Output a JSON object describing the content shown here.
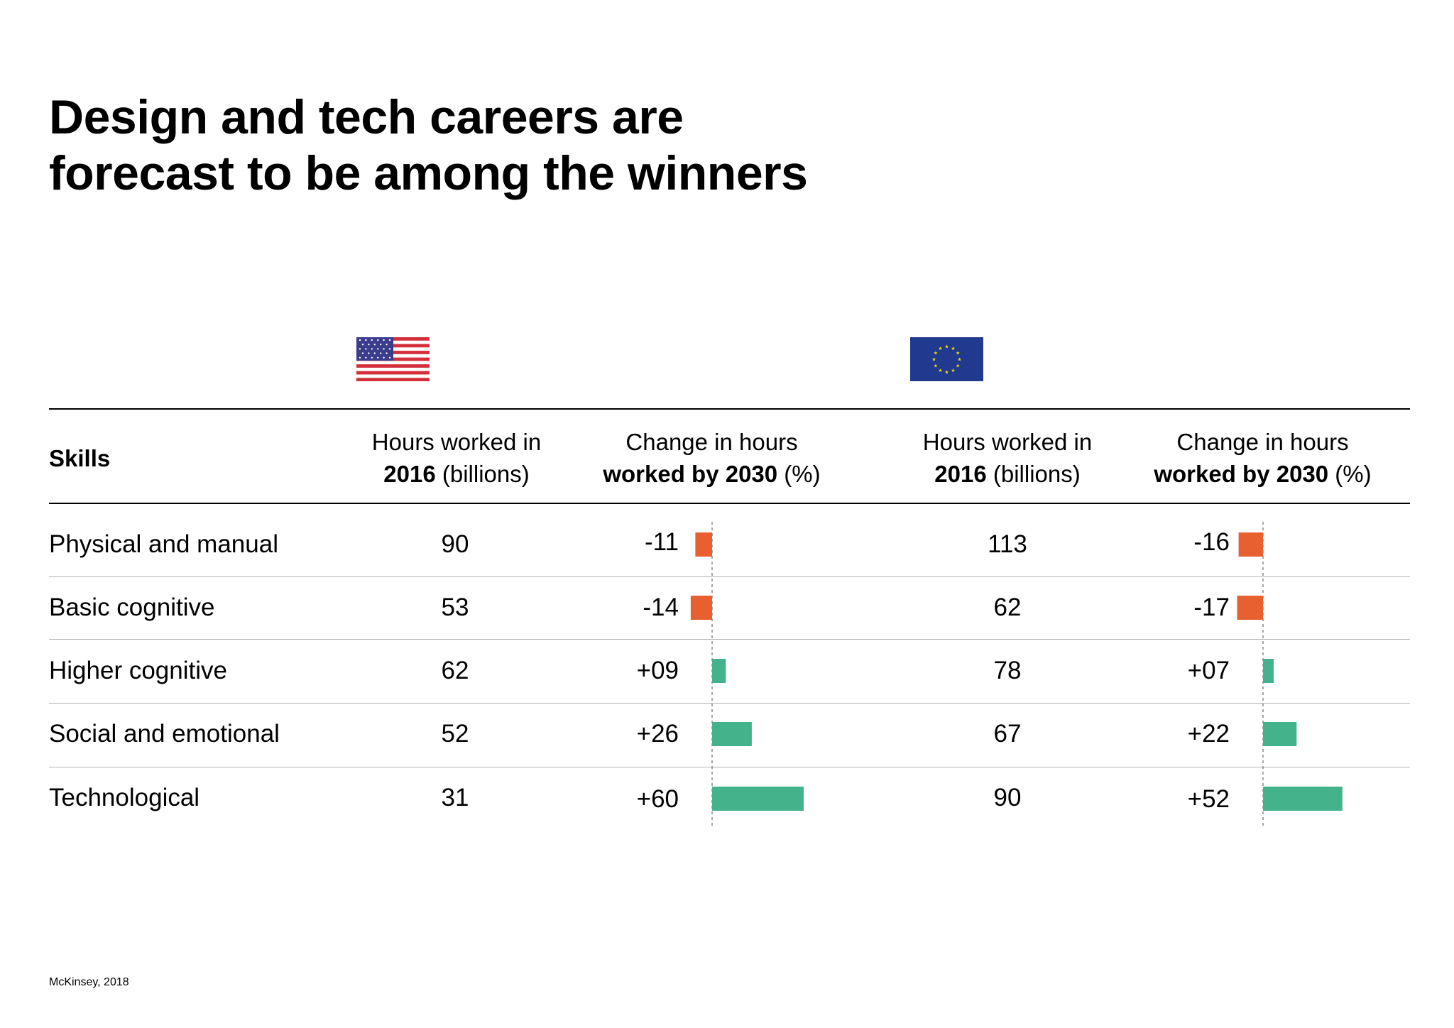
{
  "chart_data": {
    "type": "table",
    "title_lines": [
      "Design and tech careers are",
      "forecast to be among the winners"
    ],
    "columns": {
      "skills": "Skills",
      "hours_2016": {
        "line1": "Hours worked in",
        "line2_bold": "2016",
        "line2_rest": " (billions)"
      },
      "change_2030": {
        "line1": "Change in hours",
        "line2_bold": "worked by 2030",
        "line2_rest": " (%)"
      }
    },
    "regions": [
      {
        "name": "us-flag"
      },
      {
        "name": "eu-flag"
      }
    ],
    "rows": [
      {
        "skill": "Physical and manual",
        "us_hours": "90",
        "us_change": "-11",
        "us_change_value": -11,
        "eu_hours": "113",
        "eu_change": "-16",
        "eu_change_value": -16
      },
      {
        "skill": "Basic cognitive",
        "us_hours": "53",
        "us_change": "-14",
        "us_change_value": -14,
        "eu_hours": "62",
        "eu_change": "-17",
        "eu_change_value": -17
      },
      {
        "skill": "Higher cognitive",
        "us_hours": "62",
        "us_change": "+09",
        "us_change_value": 9,
        "eu_hours": "78",
        "eu_change": "+07",
        "eu_change_value": 7
      },
      {
        "skill": "Social and emotional",
        "us_hours": "52",
        "us_change": "+26",
        "us_change_value": 26,
        "eu_hours": "67",
        "eu_change": "+22",
        "eu_change_value": 22
      },
      {
        "skill": "Technological",
        "us_hours": "31",
        "us_change": "+60",
        "us_change_value": 60,
        "eu_hours": "90",
        "eu_change": "+52",
        "eu_change_value": 52
      }
    ],
    "colors": {
      "negative": "#e8602f",
      "positive": "#44b38b",
      "us_blue": "#3a3c8c",
      "us_red": "#d42e3a",
      "eu_blue": "#213a8f",
      "eu_star": "#f5d800"
    },
    "source": "McKinsey, 2018"
  }
}
